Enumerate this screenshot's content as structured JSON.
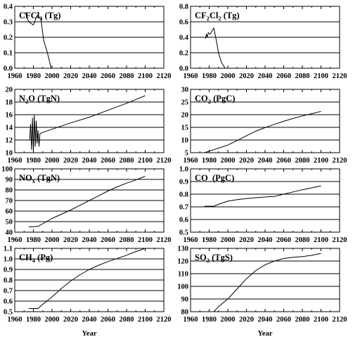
{
  "chart_data": [
    {
      "type": "line",
      "title": {
        "prefix": "CFCl",
        "sub": "3",
        "suffix": " (Tg)"
      },
      "xlim": [
        1960,
        2120
      ],
      "ylim": [
        0.0,
        0.4
      ],
      "xticks": [
        "1960",
        "1980",
        "2000",
        "2020",
        "2040",
        "2060",
        "2080",
        "2100",
        "2120"
      ],
      "yticks": [
        "0.0",
        "0.1",
        "0.2",
        "0.3",
        "0.4"
      ],
      "grid": true,
      "series": [
        {
          "x": [
            1971,
            1975,
            1980,
            1984,
            1988,
            1991,
            1995,
            1999
          ],
          "y": [
            0.36,
            0.3,
            0.28,
            0.34,
            0.32,
            0.18,
            0.1,
            0.0
          ]
        }
      ]
    },
    {
      "type": "line",
      "title": {
        "prefix": "CF",
        "sub": "2",
        "mid": "Cl",
        "sub2": "2",
        "suffix": " (Tg)"
      },
      "xlim": [
        1960,
        2120
      ],
      "ylim": [
        0.0,
        0.8
      ],
      "xticks": [
        "1960",
        "1980",
        "2000",
        "2020",
        "2040",
        "2060",
        "2080",
        "2100",
        "2120"
      ],
      "yticks": [
        "0.0",
        "0.2",
        "0.4",
        "0.6",
        "0.8"
      ],
      "grid": true,
      "series": [
        {
          "x": [
            1976,
            1977,
            1978,
            1979,
            1981,
            1983,
            1985,
            1987,
            1990,
            1993,
            1997
          ],
          "y": [
            0.38,
            0.44,
            0.4,
            0.46,
            0.44,
            0.48,
            0.52,
            0.4,
            0.2,
            0.08,
            0.0
          ]
        }
      ]
    },
    {
      "type": "line",
      "title": {
        "prefix": "N",
        "sub": "2",
        "suffix": "O (TgN)"
      },
      "xlim": [
        1960,
        2120
      ],
      "ylim": [
        10,
        20
      ],
      "xticks": [
        "1960",
        "1980",
        "2000",
        "2020",
        "2040",
        "2060",
        "2080",
        "2100",
        "2120"
      ],
      "yticks": [
        "10",
        "12",
        "14",
        "16",
        "18",
        "20"
      ],
      "grid": true,
      "series": [
        {
          "x": [
            1975,
            1976,
            1977,
            1978,
            1979,
            1980,
            1981,
            1982,
            1983,
            1984,
            1985,
            1986,
            1987,
            1990,
            2000,
            2020,
            2040,
            2060,
            2080,
            2100
          ],
          "y": [
            12.0,
            12.0,
            14.5,
            10.5,
            15.5,
            10.0,
            16.0,
            11.0,
            15.0,
            11.5,
            13.5,
            11.0,
            13.0,
            13.2,
            13.7,
            14.7,
            15.6,
            16.7,
            17.8,
            19.0
          ]
        }
      ]
    },
    {
      "type": "line",
      "title": {
        "prefix": "CO",
        "sub": "2",
        "suffix": " (PgC)"
      },
      "xlim": [
        1960,
        2120
      ],
      "ylim": [
        5,
        30
      ],
      "xticks": [
        "1960",
        "1980",
        "2000",
        "2020",
        "2040",
        "2060",
        "2080",
        "2100",
        "2120"
      ],
      "yticks": [
        "5",
        "10",
        "15",
        "20",
        "25",
        "30"
      ],
      "grid": true,
      "series": [
        {
          "x": [
            1975,
            1985,
            1995,
            2000,
            2010,
            2020,
            2030,
            2040,
            2050,
            2060,
            2070,
            2080,
            2090,
            2100
          ],
          "y": [
            5.0,
            6.2,
            7.4,
            8.0,
            9.8,
            11.7,
            13.5,
            14.9,
            16.2,
            17.4,
            18.5,
            19.5,
            20.4,
            21.3
          ]
        }
      ]
    },
    {
      "type": "line",
      "title": {
        "prefix": "NO",
        "sub": "x",
        "suffix": " (TgN)"
      },
      "xlim": [
        1960,
        2120
      ],
      "ylim": [
        40,
        100
      ],
      "xticks": [
        "1960",
        "1980",
        "2000",
        "2020",
        "2040",
        "2060",
        "2080",
        "2100",
        "2120"
      ],
      "yticks": [
        "40",
        "50",
        "60",
        "70",
        "80",
        "90",
        "100"
      ],
      "grid": true,
      "series": [
        {
          "x": [
            1975,
            1985,
            1990,
            2000,
            2010,
            2020,
            2030,
            2040,
            2050,
            2060,
            2070,
            2080,
            2090,
            2100
          ],
          "y": [
            45.0,
            45.5,
            48.0,
            53.0,
            57.0,
            61.0,
            65.5,
            70.0,
            74.5,
            79.0,
            83.0,
            86.5,
            89.5,
            93.0
          ]
        }
      ]
    },
    {
      "type": "line",
      "title": {
        "prefix": "CO  (PgC)"
      },
      "xlim": [
        1960,
        2120
      ],
      "ylim": [
        0.5,
        1.0
      ],
      "xticks": [
        "1960",
        "1980",
        "2000",
        "2020",
        "2040",
        "2060",
        "2080",
        "2100",
        "2120"
      ],
      "yticks": [
        "0.5",
        "0.6",
        "0.7",
        "0.8",
        "0.9",
        "1.0"
      ],
      "grid": true,
      "series": [
        {
          "x": [
            1975,
            1985,
            1990,
            2000,
            2010,
            2020,
            2030,
            2040,
            2050,
            2060,
            2070,
            2080,
            2090,
            2100
          ],
          "y": [
            0.705,
            0.705,
            0.72,
            0.745,
            0.757,
            0.765,
            0.772,
            0.778,
            0.782,
            0.8,
            0.818,
            0.835,
            0.85,
            0.865
          ]
        }
      ]
    },
    {
      "type": "line",
      "title": {
        "prefix": "CH",
        "sub": "4",
        "suffix": " (Pg)"
      },
      "xlim": [
        1960,
        2120
      ],
      "ylim": [
        0.5,
        1.1
      ],
      "xticks": [
        "1960",
        "1980",
        "2000",
        "2020",
        "2040",
        "2060",
        "2080",
        "2100",
        "2120"
      ],
      "yticks": [
        "0.5",
        "0.6",
        "0.7",
        "0.8",
        "0.9",
        "1.0",
        "1.1"
      ],
      "grid": true,
      "xlabel": "Year",
      "series": [
        {
          "x": [
            1975,
            1985,
            1990,
            2000,
            2010,
            2020,
            2030,
            2040,
            2050,
            2060,
            2070,
            2080,
            2090,
            2100
          ],
          "y": [
            0.53,
            0.53,
            0.57,
            0.64,
            0.72,
            0.79,
            0.85,
            0.9,
            0.94,
            0.975,
            1.005,
            1.035,
            1.07,
            1.1
          ]
        }
      ]
    },
    {
      "type": "line",
      "title": {
        "prefix": "SO",
        "sub": "2",
        "suffix": " (TgS)"
      },
      "xlim": [
        1960,
        2120
      ],
      "ylim": [
        80,
        130
      ],
      "xticks": [
        "1960",
        "1980",
        "2000",
        "2020",
        "2040",
        "2060",
        "2080",
        "2100",
        "2120"
      ],
      "yticks": [
        "80",
        "90",
        "100",
        "110",
        "120",
        "130"
      ],
      "grid": true,
      "xlabel": "Year",
      "series": [
        {
          "x": [
            1975,
            1985,
            1990,
            2000,
            2010,
            2020,
            2030,
            2040,
            2050,
            2060,
            2070,
            2080,
            2090,
            2100
          ],
          "y": [
            80.0,
            80.0,
            84.0,
            90.0,
            98.0,
            106.0,
            112.5,
            117.0,
            120.0,
            122.0,
            123.0,
            123.5,
            124.5,
            126.0
          ]
        }
      ]
    }
  ]
}
